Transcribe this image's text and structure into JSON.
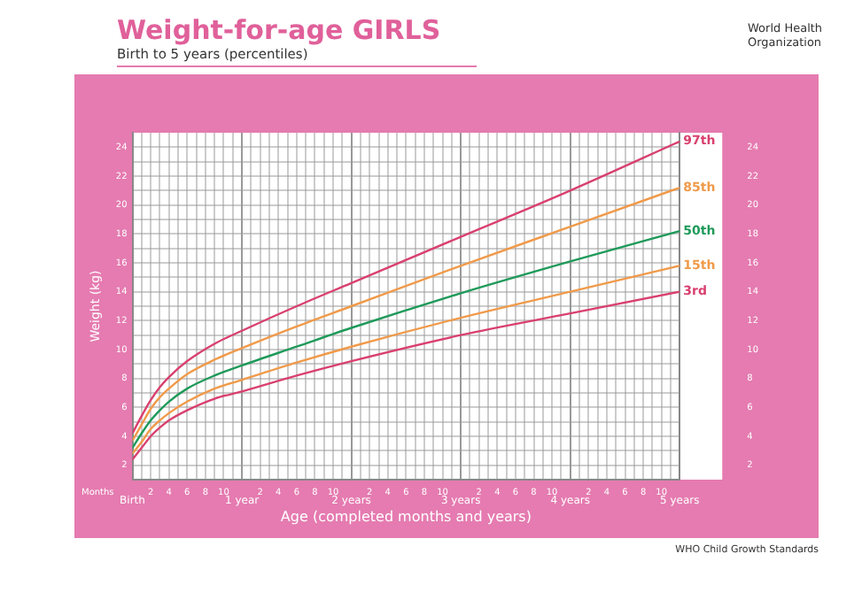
{
  "chart_data": {
    "type": "line",
    "title": "Weight-for-age GIRLS",
    "subtitle": "Birth to 5 years (percentiles)",
    "xlabel": "Age (completed months and years)",
    "ylabel": "Weight (kg)",
    "annotations": [
      "World Health Organization",
      "WHO Child Growth Standards",
      "Months",
      "2",
      "4",
      "6",
      "8",
      "10",
      "2",
      "4",
      "6",
      "8",
      "10",
      "2",
      "4",
      "6",
      "8",
      "10",
      "2",
      "4",
      "6",
      "8",
      "10",
      "2",
      "4",
      "6",
      "8",
      "10"
    ],
    "x": [
      0,
      0.0833,
      0.1667,
      0.25,
      0.3333,
      0.5,
      0.75,
      1,
      1.5,
      2,
      3,
      4,
      5
    ],
    "series": [
      {
        "name": "97th",
        "color": "#d9406f",
        "values": [
          4.2,
          5.4,
          6.5,
          7.4,
          8.1,
          9.2,
          10.4,
          11.3,
          13.0,
          14.6,
          17.8,
          21.0,
          24.4
        ]
      },
      {
        "name": "85th",
        "color": "#f09a4a",
        "values": [
          3.7,
          4.8,
          5.9,
          6.7,
          7.3,
          8.3,
          9.3,
          10.1,
          11.6,
          13.0,
          15.8,
          18.5,
          21.2
        ]
      },
      {
        "name": "50th",
        "color": "#1f9a5a",
        "values": [
          3.2,
          4.2,
          5.1,
          5.8,
          6.4,
          7.3,
          8.2,
          8.9,
          10.2,
          11.5,
          13.9,
          16.1,
          18.2
        ]
      },
      {
        "name": "15th",
        "color": "#f09a4a",
        "values": [
          2.8,
          3.6,
          4.5,
          5.1,
          5.6,
          6.4,
          7.3,
          7.9,
          9.1,
          10.2,
          12.2,
          14.0,
          15.8
        ]
      },
      {
        "name": "3rd",
        "color": "#d9406f",
        "values": [
          2.4,
          3.2,
          4.0,
          4.6,
          5.1,
          5.8,
          6.6,
          7.1,
          8.2,
          9.2,
          11.0,
          12.5,
          14.0
        ]
      }
    ],
    "xlim": [
      0,
      5
    ],
    "xticks": [
      {
        "value": 0,
        "label": "Birth"
      },
      {
        "value": 0.0833,
        "label": null
      },
      {
        "value": 0.1667,
        "label": null
      },
      {
        "value": 0.25,
        "label": null
      },
      {
        "value": 0.3333,
        "label": null
      },
      {
        "value": 0.4167,
        "label": null
      },
      {
        "value": 0.5,
        "label": null
      },
      {
        "value": 0.5833,
        "label": null
      },
      {
        "value": 0.6667,
        "label": null
      },
      {
        "value": 0.75,
        "label": null
      },
      {
        "value": 0.8333,
        "label": null
      },
      {
        "value": 0.9167,
        "label": null
      },
      {
        "value": 1,
        "label": "1 year"
      },
      {
        "value": 1.0833,
        "label": null
      },
      {
        "value": 1.1667,
        "label": null
      },
      {
        "value": 1.25,
        "label": null
      },
      {
        "value": 1.3333,
        "label": null
      },
      {
        "value": 1.4167,
        "label": null
      },
      {
        "value": 1.5,
        "label": null
      },
      {
        "value": 1.5833,
        "label": null
      },
      {
        "value": 1.6667,
        "label": null
      },
      {
        "value": 1.75,
        "label": null
      },
      {
        "value": 1.8333,
        "label": null
      },
      {
        "value": 1.9167,
        "label": null
      },
      {
        "value": 2,
        "label": "2 years"
      },
      {
        "value": 2.0833,
        "label": null
      },
      {
        "value": 2.1667,
        "label": null
      },
      {
        "value": 2.25,
        "label": null
      },
      {
        "value": 2.3333,
        "label": null
      },
      {
        "value": 2.4167,
        "label": null
      },
      {
        "value": 2.5,
        "label": null
      },
      {
        "value": 2.5833,
        "label": null
      },
      {
        "value": 2.6667,
        "label": null
      },
      {
        "value": 2.75,
        "label": null
      },
      {
        "value": 2.8333,
        "label": null
      },
      {
        "value": 2.9167,
        "label": null
      },
      {
        "value": 3,
        "label": "3 years"
      },
      {
        "value": 3.0833,
        "label": null
      },
      {
        "value": 3.1667,
        "label": null
      },
      {
        "value": 3.25,
        "label": null
      },
      {
        "value": 3.3333,
        "label": null
      },
      {
        "value": 3.4167,
        "label": null
      },
      {
        "value": 3.5,
        "label": null
      },
      {
        "value": 3.5833,
        "label": null
      },
      {
        "value": 3.6667,
        "label": null
      },
      {
        "value": 3.75,
        "label": null
      },
      {
        "value": 3.8333,
        "label": null
      },
      {
        "value": 3.9167,
        "label": null
      },
      {
        "value": 4,
        "label": "4 years"
      },
      {
        "value": 4.0833,
        "label": null
      },
      {
        "value": 4.1667,
        "label": null
      },
      {
        "value": 4.25,
        "label": null
      },
      {
        "value": 4.3333,
        "label": null
      },
      {
        "value": 4.4167,
        "label": null
      },
      {
        "value": 4.5,
        "label": null
      },
      {
        "value": 4.5833,
        "label": null
      },
      {
        "value": 4.6667,
        "label": null
      },
      {
        "value": 4.75,
        "label": null
      },
      {
        "value": 4.8333,
        "label": null
      },
      {
        "value": 4.9167,
        "label": null
      },
      {
        "value": 5,
        "label": "5 years"
      }
    ],
    "ylim": [
      1,
      25
    ],
    "yticks": [
      2,
      {
        "value": 3,
        "label": null
      },
      4,
      {
        "value": 5,
        "label": null
      },
      6,
      {
        "value": 7,
        "label": null
      },
      8,
      {
        "value": 9,
        "label": null
      },
      10,
      {
        "value": 11,
        "label": null
      },
      12,
      {
        "value": 13,
        "label": null
      },
      14,
      {
        "value": 15,
        "label": null
      },
      16,
      {
        "value": 17,
        "label": null
      },
      18,
      {
        "value": 19,
        "label": null
      },
      20,
      {
        "value": 21,
        "label": null
      },
      22,
      {
        "value": 23,
        "label": null
      },
      24
    ],
    "y2lim": [
      1,
      25
    ],
    "y2ticks": [
      2,
      {
        "value": 3,
        "label": null
      },
      4,
      {
        "value": 5,
        "label": null
      },
      6,
      {
        "value": 7,
        "label": null
      },
      8,
      {
        "value": 9,
        "label": null
      },
      10,
      {
        "value": 11,
        "label": null
      },
      12,
      {
        "value": 13,
        "label": null
      },
      14,
      {
        "value": 15,
        "label": null
      },
      16,
      {
        "value": 17,
        "label": null
      },
      18,
      {
        "value": 19,
        "label": null
      },
      20,
      {
        "value": 21,
        "label": null
      },
      22,
      {
        "value": 23,
        "label": null
      },
      24
    ],
    "grid": true,
    "legend": false,
    "marker": "none",
    "line_style": "solid"
  }
}
